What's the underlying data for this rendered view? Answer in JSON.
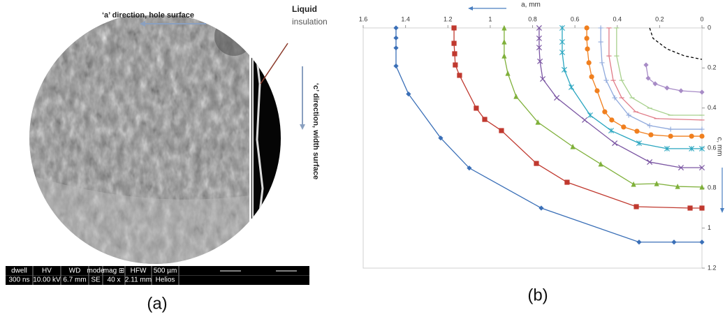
{
  "panel_a": {
    "a_direction": "‘a’ direction, hole surface",
    "liquid": "Liquid",
    "insulation": "insulation",
    "c_direction": "‘c’ direction, width surface",
    "info_header": [
      "dwell",
      "HV",
      "WD",
      "mode",
      "mag ⊞",
      "HFW",
      "500 µm"
    ],
    "info_values": [
      "300 ns",
      "10.00 kV",
      "6.7 mm",
      "SE",
      "40 x",
      "2.11 mm",
      "Helios"
    ]
  },
  "captions": [
    "(a)",
    "(b)"
  ],
  "chart_data": {
    "type": "line",
    "x_label": "a, mm",
    "y_label": "c, mm",
    "xlim": [
      1.6,
      0
    ],
    "xticks": [
      1.6,
      1.4,
      1.2,
      1,
      0.8,
      0.6,
      0.4,
      0.2,
      0
    ],
    "ylim": [
      0,
      1.2
    ],
    "yticks": [
      0,
      0.2,
      0.4,
      0.6,
      0.8,
      1,
      1.2
    ],
    "y_inverted": true,
    "x_axis_position": "top",
    "y_axis_position": "right",
    "grid": false,
    "series": [
      {
        "color": "#3a6fb7",
        "marker": "diamond",
        "x": [
          1.445,
          1.445,
          1.445,
          1.445,
          1.386,
          1.234,
          1.099,
          0.759,
          0.297,
          0.132,
          0
        ],
        "values": [
          0,
          0.05,
          0.1,
          0.19,
          0.33,
          0.55,
          0.7,
          0.9,
          1.07,
          1.07,
          1.07
        ]
      },
      {
        "color": "#c0392f",
        "marker": "square",
        "x": [
          1.171,
          1.171,
          1.168,
          1.165,
          1.145,
          1.066,
          1.026,
          0.947,
          0.782,
          0.637,
          0.31,
          0.056,
          0
        ],
        "values": [
          0,
          0.077,
          0.129,
          0.185,
          0.237,
          0.401,
          0.457,
          0.513,
          0.677,
          0.771,
          0.893,
          0.9,
          0.9
        ]
      },
      {
        "color": "#7fb03a",
        "marker": "triangle",
        "x": [
          0.934,
          0.934,
          0.934,
          0.917,
          0.878,
          0.775,
          0.61,
          0.478,
          0.323,
          0.214,
          0.115,
          0
        ],
        "values": [
          0,
          0.07,
          0.14,
          0.227,
          0.342,
          0.471,
          0.593,
          0.68,
          0.781,
          0.778,
          0.792,
          0.795
        ]
      },
      {
        "color": "#7b56a3",
        "marker": "x",
        "x": [
          0.769,
          0.769,
          0.769,
          0.765,
          0.752,
          0.686,
          0.554,
          0.412,
          0.247,
          0.099,
          0
        ],
        "values": [
          0,
          0.052,
          0.098,
          0.167,
          0.255,
          0.349,
          0.46,
          0.576,
          0.67,
          0.698,
          0.698
        ]
      },
      {
        "color": "#2aa6c0",
        "marker": "star",
        "x": [
          0.66,
          0.66,
          0.66,
          0.65,
          0.617,
          0.528,
          0.429,
          0.297,
          0.165,
          0.049,
          0
        ],
        "values": [
          0,
          0.07,
          0.122,
          0.209,
          0.296,
          0.436,
          0.513,
          0.576,
          0.603,
          0.603,
          0.603
        ]
      },
      {
        "color": "#f07f1e",
        "marker": "circle",
        "x": [
          0.544,
          0.544,
          0.541,
          0.534,
          0.521,
          0.495,
          0.459,
          0.426,
          0.37,
          0.307,
          0.241,
          0.148,
          0.049,
          0
        ],
        "values": [
          0,
          0.052,
          0.105,
          0.174,
          0.244,
          0.314,
          0.419,
          0.46,
          0.495,
          0.516,
          0.534,
          0.541,
          0.541,
          0.541
        ]
      },
      {
        "color": "#8fa9dc",
        "marker": "plus",
        "x": [
          0.478,
          0.478,
          0.472,
          0.452,
          0.412,
          0.346,
          0.247,
          0.148,
          0
        ],
        "values": [
          0,
          0.07,
          0.174,
          0.262,
          0.349,
          0.436,
          0.488,
          0.506,
          0.506
        ]
      },
      {
        "color": "#e07a86",
        "marker": "dash",
        "x": [
          0.439,
          0.439,
          0.419,
          0.379,
          0.313,
          0.214,
          0
        ],
        "values": [
          0,
          0.14,
          0.262,
          0.349,
          0.419,
          0.453,
          0.46
        ]
      },
      {
        "color": "#a7d08c",
        "marker": "dash",
        "x": [
          0.403,
          0.403,
          0.379,
          0.33,
          0.247,
          0.148,
          0
        ],
        "values": [
          0,
          0.14,
          0.262,
          0.349,
          0.401,
          0.436,
          0.436
        ]
      },
      {
        "color": "#a78bc6",
        "marker": "diamond",
        "x": [
          0.264,
          0.254,
          0.221,
          0.165,
          0.099,
          0
        ],
        "values": [
          0.185,
          0.251,
          0.279,
          0.3,
          0.314,
          0.321
        ]
      },
      {
        "color": "#000000",
        "marker": "none",
        "dashed": true,
        "x": [
          0.247,
          0.231,
          0.165,
          0.082,
          0
        ],
        "values": [
          0,
          0.052,
          0.105,
          0.14,
          0.157
        ]
      }
    ]
  }
}
